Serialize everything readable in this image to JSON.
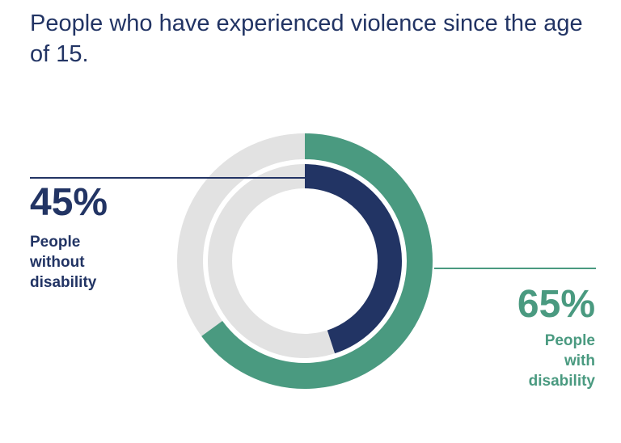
{
  "chart_data": {
    "type": "pie",
    "subtype": "nested-donut",
    "title": "People who have experienced violence since the age of 15.",
    "series": [
      {
        "name": "People without disability",
        "value": 45,
        "label": "45%",
        "ring": "inner",
        "color": "#223464"
      },
      {
        "name": "People with disability",
        "value": 65,
        "label": "65%",
        "ring": "outer",
        "color": "#4a9a80"
      }
    ],
    "max": 100,
    "track_color": "#e2e2e2"
  },
  "labels": {
    "without": [
      "People",
      "without",
      "disability"
    ],
    "with": [
      "People",
      "with",
      "disability"
    ]
  }
}
